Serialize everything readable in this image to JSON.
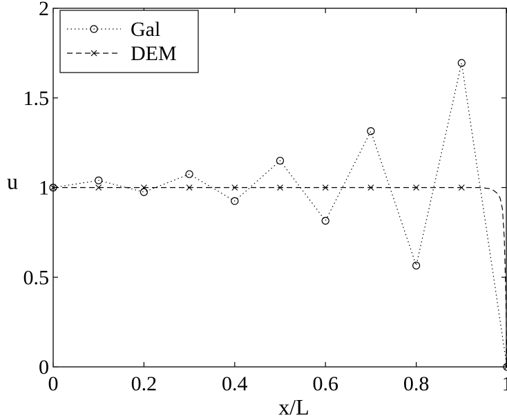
{
  "chart_data": {
    "type": "line",
    "xlabel": "x/L",
    "ylabel": "u",
    "xlim": [
      0,
      1
    ],
    "ylim": [
      0,
      2
    ],
    "xticks": [
      "0",
      "0.2",
      "0.4",
      "0.6",
      "0.8",
      "1"
    ],
    "yticks": [
      "0",
      "0.5",
      "1",
      "1.5",
      "2"
    ],
    "grid": false,
    "legend_position": "top-left",
    "series": [
      {
        "name": "Gal",
        "line_style": "dotted",
        "marker": "circle",
        "x": [
          0,
          0.1,
          0.2,
          0.3,
          0.4,
          0.5,
          0.6,
          0.7,
          0.8,
          0.9,
          1.0
        ],
        "y": [
          1.0,
          1.04,
          0.975,
          1.075,
          0.925,
          1.15,
          0.815,
          1.315,
          0.565,
          1.695,
          0.0
        ]
      },
      {
        "name": "DEM",
        "line_style": "dashed",
        "marker": "x",
        "x": [
          0,
          0.1,
          0.2,
          0.3,
          0.4,
          0.5,
          0.6,
          0.7,
          0.8,
          0.9,
          1.0
        ],
        "y": [
          1.0,
          1.0,
          1.0,
          1.0,
          1.0,
          1.0,
          1.0,
          1.0,
          1.0,
          1.0,
          0.0
        ],
        "curve_x": [
          0,
          0.9,
          0.94,
          0.96,
          0.97,
          0.98,
          0.985,
          0.99,
          0.994,
          0.997,
          0.999,
          1.0
        ],
        "curve_y": [
          1.0,
          1.0,
          1.0,
          0.995,
          0.985,
          0.965,
          0.94,
          0.88,
          0.72,
          0.45,
          0.15,
          0.0
        ]
      }
    ]
  }
}
